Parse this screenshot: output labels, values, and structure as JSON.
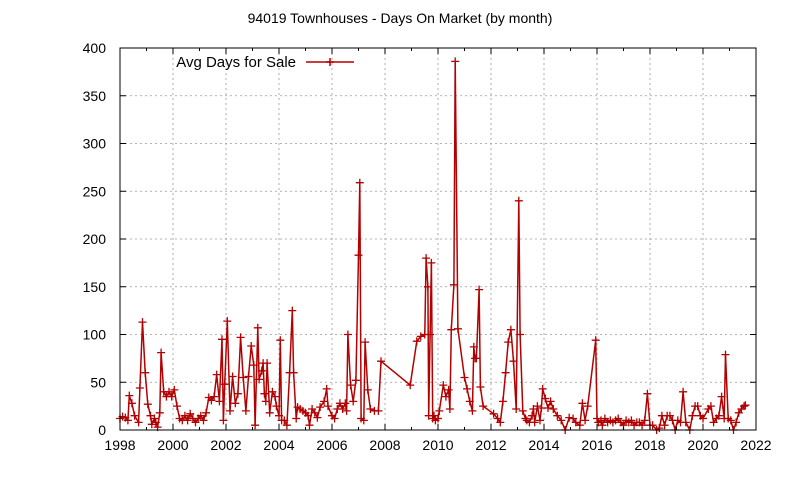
{
  "chart_data": {
    "type": "line",
    "title": "94019 Townhouses - Days On Market (by month)",
    "xlabel": "",
    "ylabel": "",
    "xlim": [
      1998,
      2022
    ],
    "ylim": [
      0,
      400
    ],
    "x_ticks": [
      1998,
      2000,
      2002,
      2004,
      2006,
      2008,
      2010,
      2012,
      2014,
      2016,
      2018,
      2020,
      2022
    ],
    "y_ticks": [
      0,
      50,
      100,
      150,
      200,
      250,
      300,
      350,
      400
    ],
    "grid": true,
    "legend_position": "top-left",
    "colors": {
      "series": "#b30000",
      "grid": "#9a9a9a",
      "axis": "#000000"
    },
    "series": [
      {
        "name": "Avg Days for Sale",
        "marker": "plus",
        "points": [
          [
            1998.0,
            12
          ],
          [
            1998.1,
            14
          ],
          [
            1998.2,
            13
          ],
          [
            1998.3,
            10
          ],
          [
            1998.35,
            36
          ],
          [
            1998.45,
            28
          ],
          [
            1998.55,
            15
          ],
          [
            1998.7,
            8
          ],
          [
            1998.75,
            44
          ],
          [
            1998.85,
            113
          ],
          [
            1998.95,
            60
          ],
          [
            1999.05,
            27
          ],
          [
            1999.15,
            15
          ],
          [
            1999.2,
            6
          ],
          [
            1999.3,
            12
          ],
          [
            1999.35,
            8
          ],
          [
            1999.42,
            3
          ],
          [
            1999.5,
            18
          ],
          [
            1999.55,
            81
          ],
          [
            1999.65,
            40
          ],
          [
            1999.75,
            35
          ],
          [
            1999.85,
            40
          ],
          [
            1999.95,
            35
          ],
          [
            2000.05,
            42
          ],
          [
            2000.15,
            25
          ],
          [
            2000.25,
            12
          ],
          [
            2000.35,
            10
          ],
          [
            2000.45,
            15
          ],
          [
            2000.55,
            10
          ],
          [
            2000.65,
            17
          ],
          [
            2000.75,
            12
          ],
          [
            2000.85,
            8
          ],
          [
            2000.95,
            12
          ],
          [
            2001.05,
            15
          ],
          [
            2001.15,
            10
          ],
          [
            2001.25,
            18
          ],
          [
            2001.35,
            34
          ],
          [
            2001.45,
            31
          ],
          [
            2001.55,
            35
          ],
          [
            2001.65,
            58
          ],
          [
            2001.75,
            30
          ],
          [
            2001.85,
            95
          ],
          [
            2001.9,
            10
          ],
          [
            2001.95,
            48
          ],
          [
            2002.05,
            114
          ],
          [
            2002.15,
            20
          ],
          [
            2002.25,
            56
          ],
          [
            2002.35,
            28
          ],
          [
            2002.45,
            38
          ],
          [
            2002.55,
            97
          ],
          [
            2002.65,
            55
          ],
          [
            2002.75,
            20
          ],
          [
            2002.85,
            56
          ],
          [
            2002.95,
            88
          ],
          [
            2003.05,
            68
          ],
          [
            2003.1,
            5
          ],
          [
            2003.2,
            107
          ],
          [
            2003.25,
            53
          ],
          [
            2003.35,
            62
          ],
          [
            2003.4,
            70
          ],
          [
            2003.45,
            38
          ],
          [
            2003.5,
            30
          ],
          [
            2003.55,
            70
          ],
          [
            2003.65,
            18
          ],
          [
            2003.75,
            40
          ],
          [
            2003.85,
            35
          ],
          [
            2003.9,
            25
          ],
          [
            2004.0,
            15
          ],
          [
            2004.05,
            94
          ],
          [
            2004.1,
            10
          ],
          [
            2004.2,
            10
          ],
          [
            2004.3,
            5
          ],
          [
            2004.4,
            60
          ],
          [
            2004.5,
            125
          ],
          [
            2004.55,
            60
          ],
          [
            2004.65,
            12
          ],
          [
            2004.7,
            24
          ],
          [
            2004.8,
            22
          ],
          [
            2004.9,
            20
          ],
          [
            2005.0,
            18
          ],
          [
            2005.1,
            15
          ],
          [
            2005.15,
            5
          ],
          [
            2005.25,
            22
          ],
          [
            2005.35,
            18
          ],
          [
            2005.45,
            13
          ],
          [
            2005.55,
            24
          ],
          [
            2005.7,
            30
          ],
          [
            2005.8,
            43
          ],
          [
            2005.85,
            25
          ],
          [
            2006.0,
            15
          ],
          [
            2006.1,
            12
          ],
          [
            2006.2,
            22
          ],
          [
            2006.3,
            28
          ],
          [
            2006.4,
            22
          ],
          [
            2006.5,
            28
          ],
          [
            2006.55,
            20
          ],
          [
            2006.6,
            100
          ],
          [
            2006.7,
            47
          ],
          [
            2006.8,
            30
          ],
          [
            2006.9,
            52
          ],
          [
            2007.0,
            183
          ],
          [
            2007.05,
            259
          ],
          [
            2007.1,
            12
          ],
          [
            2007.2,
            10
          ],
          [
            2007.25,
            92
          ],
          [
            2007.35,
            42
          ],
          [
            2007.45,
            22
          ],
          [
            2007.6,
            20
          ],
          [
            2007.75,
            20
          ],
          [
            2007.85,
            72
          ],
          [
            2008.95,
            47
          ],
          [
            2009.2,
            93
          ],
          [
            2009.35,
            98
          ],
          [
            2009.5,
            100
          ],
          [
            2009.55,
            180
          ],
          [
            2009.62,
            150
          ],
          [
            2009.65,
            15
          ],
          [
            2009.7,
            100
          ],
          [
            2009.75,
            175
          ],
          [
            2009.8,
            12
          ],
          [
            2009.85,
            15
          ],
          [
            2009.9,
            10
          ],
          [
            2010.0,
            12
          ],
          [
            2010.05,
            20
          ],
          [
            2010.2,
            47
          ],
          [
            2010.3,
            35
          ],
          [
            2010.4,
            42
          ],
          [
            2010.45,
            22
          ],
          [
            2010.5,
            105
          ],
          [
            2010.6,
            152
          ],
          [
            2010.65,
            386
          ],
          [
            2010.75,
            106
          ],
          [
            2011.0,
            55
          ],
          [
            2011.1,
            43
          ],
          [
            2011.2,
            30
          ],
          [
            2011.3,
            20
          ],
          [
            2011.35,
            87
          ],
          [
            2011.4,
            75
          ],
          [
            2011.45,
            75
          ],
          [
            2011.55,
            147
          ],
          [
            2011.6,
            45
          ],
          [
            2011.7,
            25
          ],
          [
            2012.1,
            17
          ],
          [
            2012.25,
            12
          ],
          [
            2012.35,
            8
          ],
          [
            2012.45,
            30
          ],
          [
            2012.55,
            60
          ],
          [
            2012.65,
            92
          ],
          [
            2012.75,
            105
          ],
          [
            2012.85,
            72
          ],
          [
            2012.95,
            22
          ],
          [
            2013.05,
            240
          ],
          [
            2013.1,
            100
          ],
          [
            2013.2,
            20
          ],
          [
            2013.3,
            12
          ],
          [
            2013.35,
            10
          ],
          [
            2013.45,
            8
          ],
          [
            2013.55,
            15
          ],
          [
            2013.6,
            22
          ],
          [
            2013.65,
            8
          ],
          [
            2013.75,
            25
          ],
          [
            2013.85,
            10
          ],
          [
            2013.9,
            23
          ],
          [
            2013.95,
            43
          ],
          [
            2014.05,
            33
          ],
          [
            2014.15,
            23
          ],
          [
            2014.25,
            30
          ],
          [
            2014.35,
            22
          ],
          [
            2014.5,
            15
          ],
          [
            2014.65,
            10
          ],
          [
            2014.8,
            0
          ],
          [
            2014.95,
            13
          ],
          [
            2015.1,
            12
          ],
          [
            2015.2,
            8
          ],
          [
            2015.35,
            5
          ],
          [
            2015.45,
            28
          ],
          [
            2015.55,
            10
          ],
          [
            2015.65,
            25
          ],
          [
            2015.95,
            94
          ],
          [
            2016.0,
            12
          ],
          [
            2016.05,
            8
          ],
          [
            2016.15,
            10
          ],
          [
            2016.2,
            5
          ],
          [
            2016.3,
            12
          ],
          [
            2016.4,
            8
          ],
          [
            2016.5,
            10
          ],
          [
            2016.6,
            8
          ],
          [
            2016.7,
            10
          ],
          [
            2016.8,
            12
          ],
          [
            2016.9,
            8
          ],
          [
            2017.0,
            5
          ],
          [
            2017.1,
            10
          ],
          [
            2017.2,
            8
          ],
          [
            2017.3,
            10
          ],
          [
            2017.4,
            5
          ],
          [
            2017.5,
            8
          ],
          [
            2017.6,
            8
          ],
          [
            2017.7,
            5
          ],
          [
            2017.8,
            10
          ],
          [
            2017.9,
            38
          ],
          [
            2018.0,
            5
          ],
          [
            2018.1,
            5
          ],
          [
            2018.25,
            0
          ],
          [
            2018.35,
            2
          ],
          [
            2018.45,
            15
          ],
          [
            2018.55,
            5
          ],
          [
            2018.65,
            15
          ],
          [
            2018.75,
            15
          ],
          [
            2018.85,
            10
          ],
          [
            2018.95,
            0
          ],
          [
            2019.05,
            10
          ],
          [
            2019.15,
            8
          ],
          [
            2019.25,
            40
          ],
          [
            2019.35,
            8
          ],
          [
            2019.5,
            0
          ],
          [
            2019.6,
            15
          ],
          [
            2019.7,
            25
          ],
          [
            2019.8,
            25
          ],
          [
            2019.9,
            15
          ],
          [
            2020.0,
            12
          ],
          [
            2020.2,
            22
          ],
          [
            2020.3,
            25
          ],
          [
            2020.4,
            8
          ],
          [
            2020.5,
            12
          ],
          [
            2020.6,
            15
          ],
          [
            2020.7,
            35
          ],
          [
            2020.8,
            12
          ],
          [
            2020.85,
            79
          ],
          [
            2020.95,
            12
          ],
          [
            2021.05,
            10
          ],
          [
            2021.15,
            0
          ],
          [
            2021.25,
            8
          ],
          [
            2021.35,
            18
          ],
          [
            2021.45,
            22
          ],
          [
            2021.55,
            25
          ],
          [
            2021.6,
            26
          ]
        ]
      }
    ]
  }
}
